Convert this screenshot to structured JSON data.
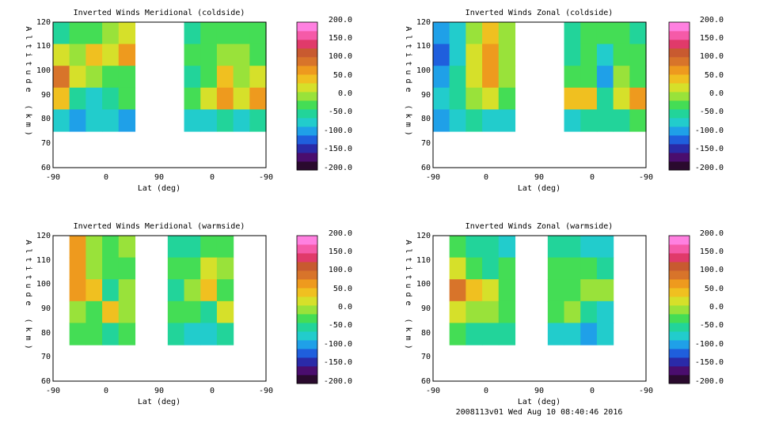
{
  "footer": "2008113v01 Wed Aug 10 08:40:46 2016",
  "palette": [
    "#2a0a2e",
    "#4a0d6e",
    "#2a2aa8",
    "#1f5fdd",
    "#1fa0e8",
    "#22cccc",
    "#22d49a",
    "#44dd55",
    "#99e23a",
    "#d6e02a",
    "#f0c020",
    "#ee9a1e",
    "#d8742a",
    "#c85a30",
    "#e03a6a",
    "#f55aa8",
    "#ff80e0"
  ],
  "colorbar_labels": [
    "200.0",
    "150.0",
    "100.0",
    "50.0",
    "0.0",
    "-50.0",
    "-100.0",
    "-150.0",
    "-200.0"
  ],
  "chart_data": [
    {
      "type": "heatmap",
      "title": "Inverted Winds Meridional (coldside)",
      "xlabel": "Lat (deg)",
      "ylabel": "Altitude (km)",
      "xticks": [
        "-90",
        "0",
        "90",
        "0",
        "-90"
      ],
      "yticks": [
        "60",
        "70",
        "80",
        "90",
        "100",
        "110",
        "120"
      ],
      "ylim": [
        60,
        120
      ],
      "colorbar_range": [
        -200,
        200
      ],
      "cols": [
        "-90",
        "-60",
        "-30",
        "0",
        "30",
        "60",
        "90",
        "60",
        "30",
        "0",
        "-30",
        "-60",
        "-90"
      ],
      "rows": [
        "120",
        "110",
        "100",
        "90",
        "80"
      ],
      "values": [
        [
          -40,
          -30,
          -20,
          10,
          20,
          null,
          null,
          null,
          -40,
          -30,
          -20,
          -30,
          -20
        ],
        [
          20,
          -10,
          40,
          20,
          60,
          null,
          null,
          null,
          -30,
          -20,
          0,
          -10,
          -20
        ],
        [
          90,
          20,
          10,
          -30,
          -20,
          null,
          null,
          null,
          -40,
          -20,
          40,
          10,
          30
        ],
        [
          40,
          -50,
          -80,
          -40,
          -30,
          null,
          null,
          null,
          -20,
          20,
          70,
          30,
          60
        ],
        [
          -80,
          -100,
          -80,
          -60,
          -90,
          null,
          null,
          null,
          -80,
          -60,
          -50,
          -70,
          -40
        ]
      ]
    },
    {
      "type": "heatmap",
      "title": "Inverted Winds Zonal (coldside)",
      "xlabel": "Lat (deg)",
      "ylabel": "Altitude (km)",
      "xticks": [
        "-90",
        "0",
        "90",
        "0",
        "-90"
      ],
      "yticks": [
        "60",
        "70",
        "80",
        "90",
        "100",
        "110",
        "120"
      ],
      "ylim": [
        60,
        120
      ],
      "colorbar_range": [
        -200,
        200
      ],
      "cols": [
        "-90",
        "-60",
        "-30",
        "0",
        "30",
        "60",
        "90",
        "60",
        "30",
        "0",
        "-30",
        "-60",
        "-90"
      ],
      "rows": [
        "120",
        "110",
        "100",
        "90",
        "80"
      ],
      "values": [
        [
          -90,
          -60,
          0,
          50,
          10,
          null,
          null,
          null,
          -40,
          -20,
          -30,
          -30,
          -40
        ],
        [
          -120,
          -70,
          20,
          60,
          0,
          null,
          null,
          null,
          -40,
          -30,
          -60,
          -20,
          -30
        ],
        [
          -100,
          -40,
          30,
          70,
          -10,
          null,
          null,
          null,
          -30,
          -20,
          -100,
          -10,
          -20
        ],
        [
          -60,
          -40,
          10,
          20,
          -30,
          null,
          null,
          null,
          40,
          50,
          -40,
          30,
          60
        ],
        [
          -90,
          -80,
          -50,
          -60,
          -70,
          null,
          null,
          null,
          -60,
          -40,
          -50,
          -40,
          -30
        ]
      ]
    },
    {
      "type": "heatmap",
      "title": "Inverted Winds Meridional (warmside)",
      "xlabel": "Lat (deg)",
      "ylabel": "Altitude (km)",
      "xticks": [
        "-90",
        "0",
        "90",
        "0",
        "-90"
      ],
      "yticks": [
        "60",
        "70",
        "80",
        "90",
        "100",
        "110",
        "120"
      ],
      "ylim": [
        60,
        120
      ],
      "colorbar_range": [
        -200,
        200
      ],
      "cols": [
        "-90",
        "-60",
        "-30",
        "0",
        "30",
        "60",
        "90",
        "60",
        "30",
        "0",
        "-30",
        "-60",
        "-90"
      ],
      "rows": [
        "120",
        "110",
        "100",
        "90",
        "80"
      ],
      "values": [
        [
          null,
          60,
          -10,
          -20,
          -10,
          null,
          null,
          -40,
          -40,
          -30,
          -30,
          null,
          null
        ],
        [
          null,
          80,
          10,
          -20,
          -20,
          null,
          null,
          -30,
          -30,
          20,
          -10,
          null,
          null
        ],
        [
          null,
          60,
          40,
          -40,
          10,
          null,
          null,
          -40,
          10,
          40,
          -20,
          null,
          null
        ],
        [
          null,
          10,
          -20,
          50,
          -10,
          null,
          null,
          -20,
          -30,
          -40,
          30,
          null,
          null
        ],
        [
          null,
          -20,
          -30,
          -50,
          -20,
          null,
          null,
          -50,
          -70,
          -80,
          -40,
          null,
          null
        ]
      ]
    },
    {
      "type": "heatmap",
      "title": "Inverted Winds Zonal (warmside)",
      "xlabel": "Lat (deg)",
      "ylabel": "Altitude (km)",
      "xticks": [
        "-90",
        "0",
        "90",
        "0",
        "-90"
      ],
      "yticks": [
        "60",
        "70",
        "80",
        "90",
        "100",
        "110",
        "120"
      ],
      "ylim": [
        60,
        120
      ],
      "colorbar_range": [
        -200,
        200
      ],
      "cols": [
        "-90",
        "-60",
        "-30",
        "0",
        "30",
        "60",
        "90",
        "60",
        "30",
        "0",
        "-30",
        "-60",
        "-90"
      ],
      "rows": [
        "120",
        "110",
        "100",
        "90",
        "80"
      ],
      "values": [
        [
          null,
          -20,
          -40,
          -50,
          -60,
          null,
          null,
          -40,
          -40,
          -60,
          -80,
          null,
          null
        ],
        [
          null,
          20,
          -30,
          -40,
          -20,
          null,
          null,
          -30,
          -30,
          -20,
          -40,
          null,
          null
        ],
        [
          null,
          90,
          40,
          20,
          -20,
          null,
          null,
          -20,
          -30,
          10,
          -10,
          null,
          null
        ],
        [
          null,
          20,
          0,
          -10,
          -30,
          null,
          null,
          -20,
          -10,
          -40,
          -60,
          null,
          null
        ],
        [
          null,
          -30,
          -40,
          -50,
          -50,
          null,
          null,
          -60,
          -70,
          -90,
          -80,
          null,
          null
        ]
      ]
    }
  ]
}
